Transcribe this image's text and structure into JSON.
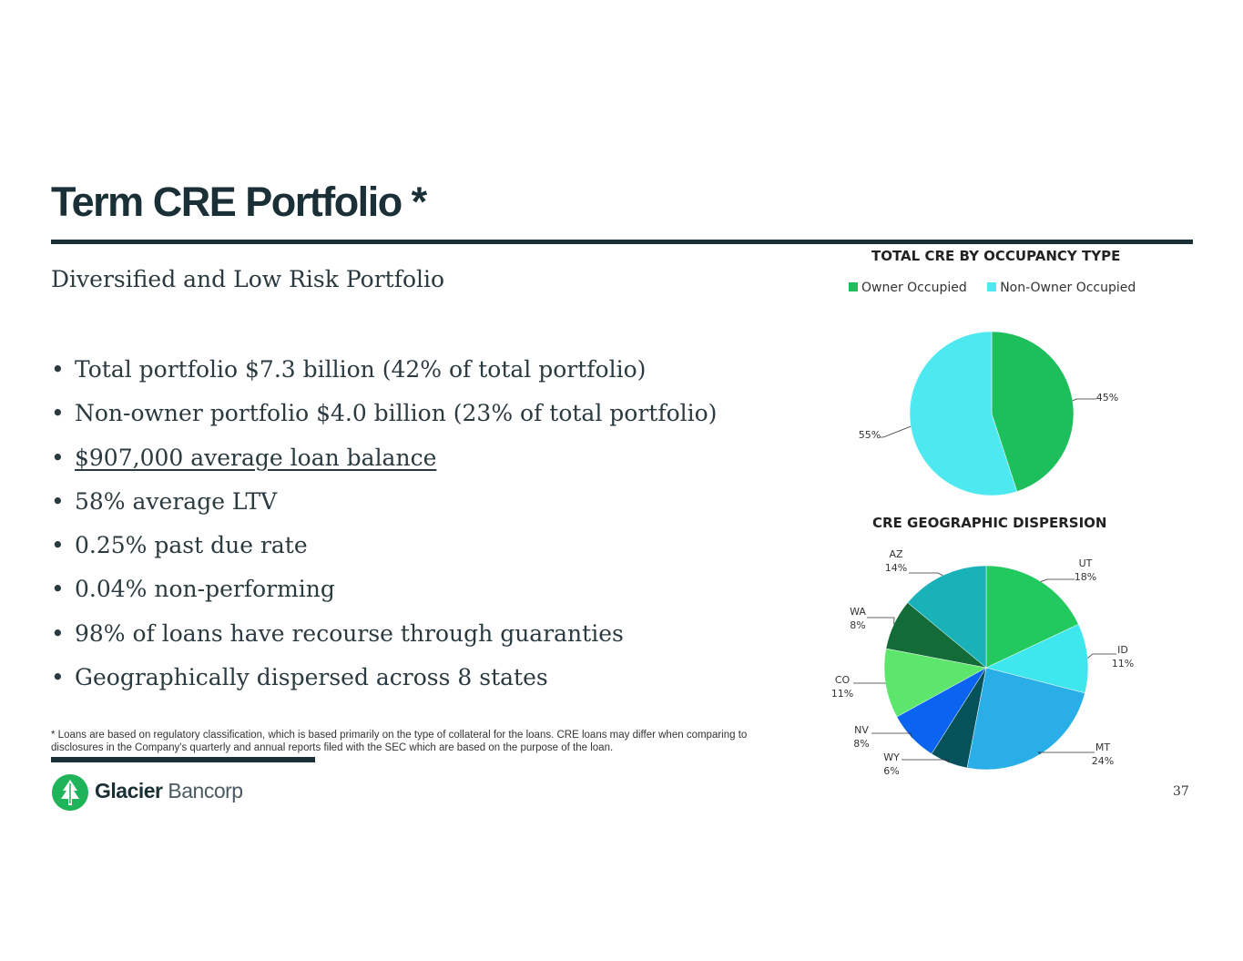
{
  "page": {
    "title": "Term CRE Portfolio *",
    "subtitle": "Diversified and Low Risk Portfolio",
    "bullets": [
      "Total portfolio $7.3 billion (42% of total portfolio)",
      "Non-owner portfolio $4.0 billion (23% of total portfolio)",
      "$907,000 average loan balance",
      "58% average LTV",
      "0.25% past due rate",
      "0.04% non-performing",
      "98% of loans have recourse through guaranties",
      "Geographically dispersed across 8 states"
    ],
    "footnote": "* Loans are based on regulatory classification, which is based primarily on the type of collateral for the loans. CRE loans may differ when comparing to disclosures in the Company's quarterly and annual reports filed with the SEC which are based on the purpose of the loan.",
    "logo": {
      "name_bold": "Glacier",
      "name_light": "Bancorp"
    },
    "page_number": "37"
  },
  "colors": {
    "title": "#1b2f36",
    "owner": "#1cbf5c",
    "non_owner": "#4ee8f0"
  },
  "chart_data": [
    {
      "type": "pie",
      "title": "TOTAL CRE BY OCCUPANCY TYPE",
      "legend_position": "top",
      "slices": [
        {
          "name": "Owner Occupied",
          "value": 45,
          "label": "45%",
          "color": "#1cbf5c"
        },
        {
          "name": "Non-Owner Occupied",
          "value": 55,
          "label": "55%",
          "color": "#4ee8f0"
        }
      ]
    },
    {
      "type": "pie",
      "title": "CRE GEOGRAPHIC DISPERSION",
      "legend_position": "none",
      "slices": [
        {
          "name": "UT",
          "value": 18,
          "label": "18%",
          "color": "#22c95e"
        },
        {
          "name": "ID",
          "value": 11,
          "label": "11%",
          "color": "#3ee6ee"
        },
        {
          "name": "MT",
          "value": 24,
          "label": "24%",
          "color": "#2aaee8"
        },
        {
          "name": "WY",
          "value": 6,
          "label": "6%",
          "color": "#06525a"
        },
        {
          "name": "NV",
          "value": 8,
          "label": "8%",
          "color": "#0a64f0"
        },
        {
          "name": "CO",
          "value": 11,
          "label": "11%",
          "color": "#5ce66c"
        },
        {
          "name": "WA",
          "value": 8,
          "label": "8%",
          "color": "#136b37"
        },
        {
          "name": "AZ",
          "value": 14,
          "label": "14%",
          "color": "#19b2b8"
        }
      ]
    }
  ]
}
